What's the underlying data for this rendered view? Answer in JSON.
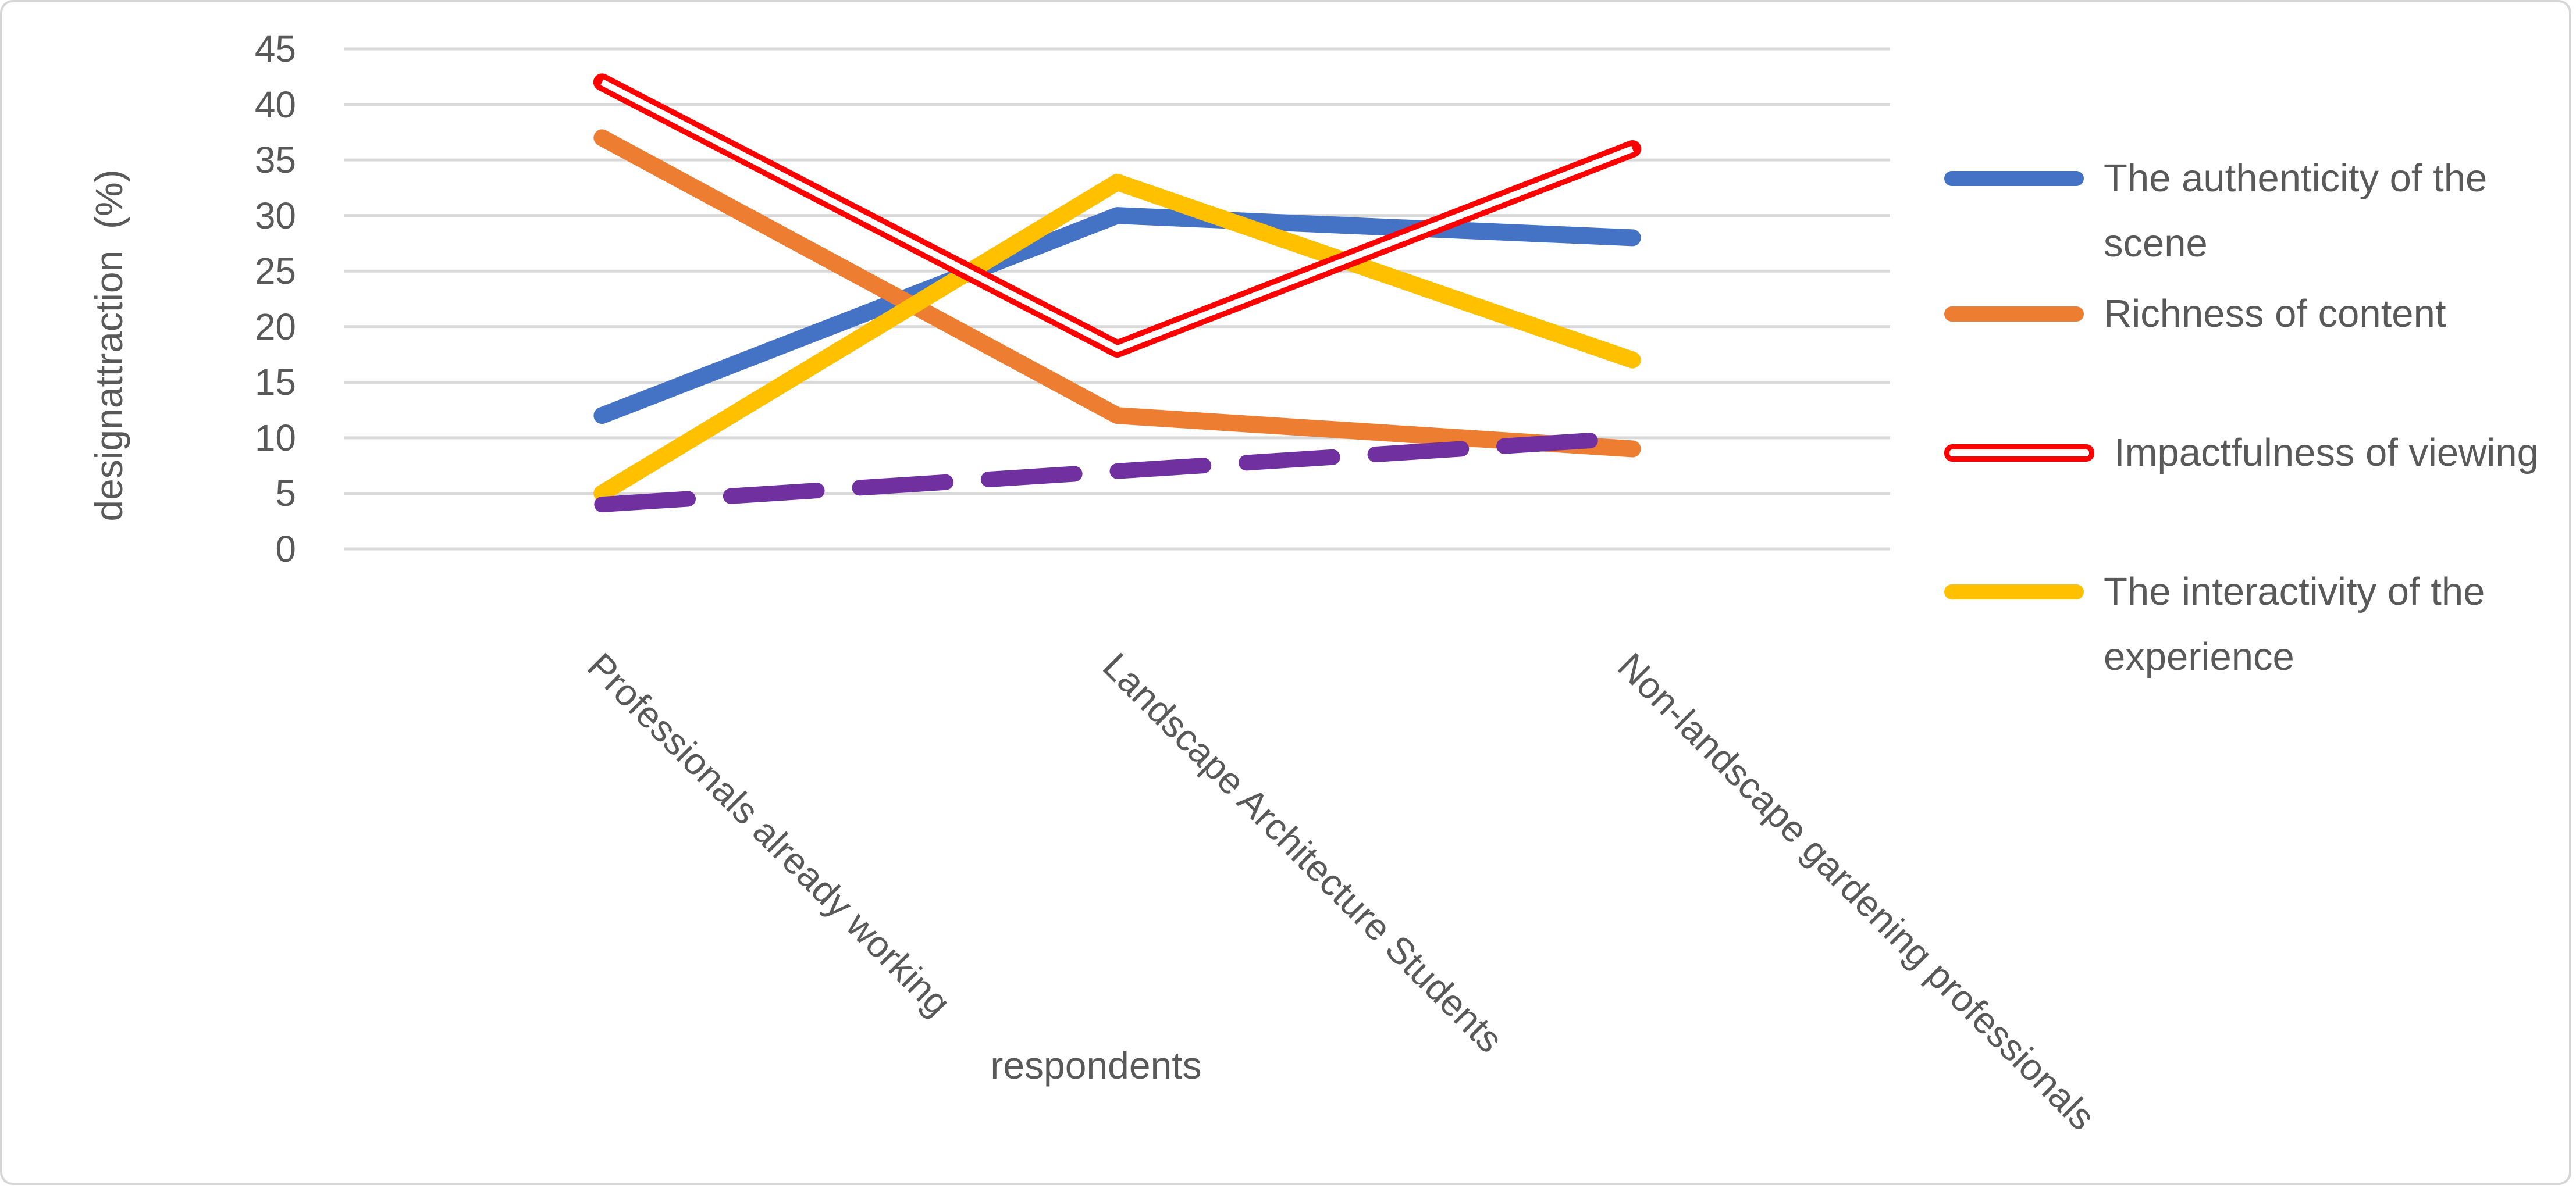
{
  "chart_data": {
    "type": "line",
    "categories": [
      "Professionals already working",
      "Landscape Architecture Students",
      "Non-landscape gardening professionals"
    ],
    "series": [
      {
        "name": "The authenticity of the scene",
        "color": "#4472C4",
        "style": "solid",
        "values": [
          12,
          30,
          28
        ]
      },
      {
        "name": "Richness of content",
        "color": "#ED7D31",
        "style": "solid",
        "values": [
          37,
          12,
          9
        ]
      },
      {
        "name": "The interactivity of the experience",
        "color": "#FFC000",
        "style": "solid",
        "values": [
          5,
          33,
          17
        ]
      },
      {
        "name": "Impactfulness of viewing",
        "color": "#FF0000",
        "style": "double",
        "values": [
          42,
          18,
          36
        ]
      },
      {
        "name": "",
        "color": "#7030A0",
        "style": "dashed",
        "values": [
          4,
          7,
          10
        ]
      }
    ],
    "title": "",
    "xlabel": "respondents",
    "ylabel": "designattraction  (%)",
    "ylim": [
      0,
      45
    ],
    "y_ticks": [
      45,
      40,
      35,
      30,
      25,
      20,
      15,
      10,
      5,
      0
    ],
    "grid": "horizontal-only",
    "legend_position": "right"
  },
  "axes": {
    "y_title": "designattraction  (%)",
    "x_title": "respondents",
    "y_tick_labels": [
      "45",
      "40",
      "35",
      "30",
      "25",
      "20",
      "15",
      "10",
      "5",
      "0"
    ]
  },
  "legend": {
    "items": [
      {
        "label": "The authenticity of the scene",
        "color": "#4472C4",
        "style": "solid"
      },
      {
        "label": "Richness of content",
        "color": "#ED7D31",
        "style": "solid"
      },
      {
        "label": "Impactfulness of viewing",
        "color": "#FF0000",
        "style": "double"
      },
      {
        "label": "The interactivity of the experience",
        "color": "#FFC000",
        "style": "solid"
      }
    ]
  },
  "colors": {
    "grid": "#D9D9D9",
    "text": "#595959",
    "border": "#D6D6D6",
    "background": "#FFFFFF"
  }
}
